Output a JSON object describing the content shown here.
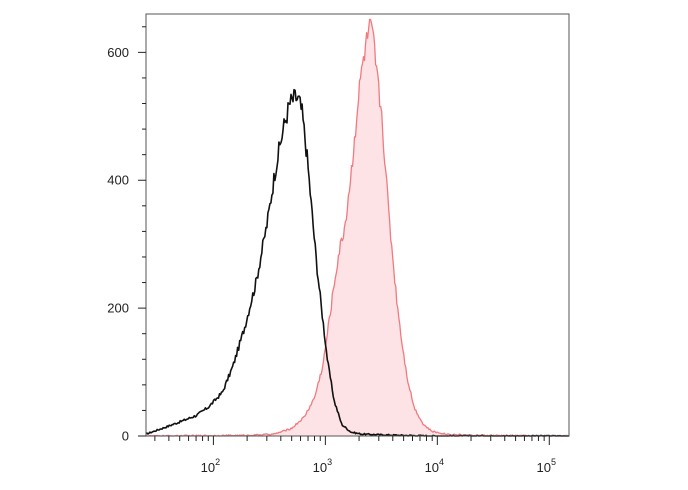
{
  "chart_data": {
    "type": "area",
    "title": "",
    "xlabel": "",
    "ylabel": "",
    "x_scale": "log",
    "xlim": [
      25,
      150000
    ],
    "ylim": [
      0,
      660
    ],
    "grid": false,
    "legend": "none",
    "y_ticks": [
      {
        "value": 0,
        "label": "0"
      },
      {
        "value": 200,
        "label": "200"
      },
      {
        "value": 400,
        "label": "400"
      },
      {
        "value": 600,
        "label": "600"
      }
    ],
    "x_ticks": [
      {
        "value": 100,
        "base": "10",
        "exp": "2"
      },
      {
        "value": 1000,
        "base": "10",
        "exp": "3"
      },
      {
        "value": 10000,
        "base": "10",
        "exp": "4"
      },
      {
        "value": 100000,
        "base": "10",
        "exp": "5"
      }
    ],
    "series": [
      {
        "color": "#111111",
        "fill": false,
        "x": [
          25,
          35,
          50,
          70,
          90,
          120,
          150,
          190,
          240,
          300,
          360,
          420,
          480,
          540,
          580,
          620,
          680,
          750,
          830,
          930,
          1050,
          1200,
          1400,
          1700,
          2100,
          3000,
          5000,
          10000,
          150000
        ],
        "y": [
          3,
          12,
          22,
          32,
          45,
          68,
          110,
          170,
          240,
          330,
          420,
          480,
          520,
          530,
          525,
          505,
          445,
          360,
          275,
          195,
          115,
          55,
          18,
          6,
          3,
          2,
          1,
          0,
          0
        ]
      },
      {
        "color": "#f07a80",
        "fill": true,
        "fill_color": "#fde3e5",
        "x": [
          25,
          200,
          350,
          500,
          650,
          800,
          950,
          1100,
          1300,
          1500,
          1700,
          1900,
          2100,
          2300,
          2500,
          2700,
          2900,
          3200,
          3500,
          3900,
          4300,
          4800,
          5400,
          6200,
          7500,
          9000,
          12000,
          20000,
          150000
        ],
        "y": [
          0,
          1,
          3,
          12,
          30,
          60,
          110,
          190,
          280,
          330,
          410,
          500,
          570,
          610,
          640,
          615,
          560,
          500,
          400,
          300,
          220,
          150,
          90,
          45,
          18,
          7,
          3,
          1,
          0
        ]
      }
    ]
  }
}
